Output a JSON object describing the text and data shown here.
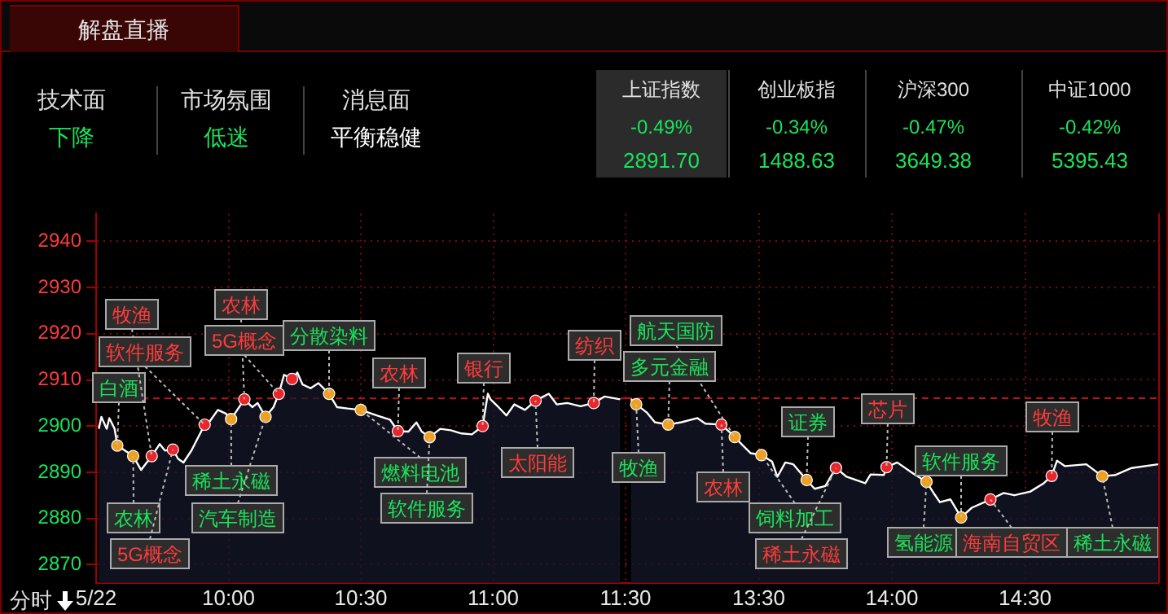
{
  "chart_data": [
    {
      "type": "other",
      "title": "解盘直播",
      "annotations": [
        "技术面",
        "下降",
        "市场氛围",
        "低迷",
        "消息面",
        "平衡稳健",
        "上证指数",
        "-0.49%",
        "2891.70",
        "创业板指",
        "-0.34%",
        "1488.63",
        "沪深300",
        "-0.47%",
        "3649.38",
        "中证1000",
        "-0.42%",
        "5395.43"
      ]
    },
    {
      "type": "area",
      "xlim": [
        9.5,
        11.5
      ],
      "xticks": [
        {
          "value": 9.5,
          "label": "5/22"
        },
        {
          "value": 10,
          "label": "10:00"
        },
        {
          "value": 10.5,
          "label": "10:30"
        },
        {
          "value": 11,
          "label": "11:00"
        },
        {
          "value": 11.5,
          "label": "11:30"
        }
      ],
      "ylim": [
        2866,
        2946
      ],
      "yticks": [
        2870,
        2880,
        2890,
        2900,
        2910,
        2920,
        2930,
        2940
      ],
      "grid": true,
      "ref_lines": [
        {
          "axis": "y",
          "value": 2906.0,
          "color": "#c0141c",
          "line_style": "dashed"
        }
      ],
      "series": [
        {
          "type": "area",
          "color": "#ffffff",
          "x": [
            9.51,
            9.52,
            9.54,
            9.55,
            9.57,
            9.58,
            9.64,
            9.67,
            9.71,
            9.74,
            9.76,
            9.79,
            9.81,
            9.83,
            9.86,
            9.91,
            9.93,
            9.96,
            9.99,
            10.01,
            10.06,
            10.09,
            10.11,
            10.14,
            10.17,
            10.19,
            10.21,
            10.24,
            10.26,
            10.28,
            10.31,
            10.34,
            10.38,
            10.41,
            10.45,
            10.5,
            10.56,
            10.61,
            10.64,
            10.68,
            10.71,
            10.73,
            10.76,
            10.8,
            10.84,
            10.88,
            10.92,
            10.96,
            10.98,
            10.99,
            11.02,
            11.05,
            11.08,
            11.12,
            11.16,
            11.19,
            11.21,
            11.24,
            11.28,
            11.33,
            11.38,
            11.42,
            11.48
          ],
          "values": [
            2899.4,
            2902.0,
            2899.4,
            2901.7,
            2899.4,
            2895.8,
            2893.5,
            2890.5,
            2893.5,
            2896.1,
            2894.7,
            2894.9,
            2892.9,
            2892.1,
            2894.7,
            2900.3,
            2901.1,
            2903.5,
            2902.7,
            2901.5,
            2905.8,
            2904.1,
            2905.0,
            2902.0,
            2904.1,
            2907.0,
            2911.1,
            2910.2,
            2911.6,
            2909.0,
            2908.2,
            2909.3,
            2907.0,
            2904.1,
            2903.8,
            2903.5,
            2902.3,
            2901.4,
            2898.9,
            2898.8,
            2900.8,
            2898.8,
            2897.6,
            2899.4,
            2899.1,
            2898.4,
            2898.2,
            2900.0,
            2907.0,
            2905.8,
            2904.1,
            2902.3,
            2904.7,
            2903.5,
            2905.5,
            2906.4,
            2907.0,
            2904.7,
            2905.0,
            2904.3,
            2905.0,
            2906.4,
            2905.8
          ]
        },
        {
          "type": "scatter",
          "color": "#e8262b",
          "marker": "circle",
          "x": [
            9.71,
            9.79,
            9.91,
            10.06,
            10.19,
            10.24,
            10.64,
            10.96,
            11.16,
            11.38
          ],
          "values": [
            2893.5,
            2894.9,
            2900.3,
            2905.8,
            2907.0,
            2910.2,
            2898.9,
            2900.0,
            2905.5,
            2905.0
          ]
        },
        {
          "type": "scatter",
          "color": "#f0a020",
          "marker": "circle",
          "x": [
            9.58,
            9.64,
            10.01,
            10.14,
            10.38,
            10.5,
            10.76
          ],
          "values": [
            2895.8,
            2893.5,
            2901.5,
            2902.0,
            2907.0,
            2903.5,
            2897.6
          ]
        }
      ],
      "annotations": [
        "分时",
        {
          "text": "白酒",
          "x": 9.58,
          "y": 2895.8
        },
        {
          "text": "农林",
          "x": 9.64,
          "y": 2893.5
        },
        {
          "text": "牧渔",
          "x": 9.71,
          "y": 2893.5
        },
        {
          "text": "软件服务",
          "x": 9.91,
          "y": 2900.3
        },
        {
          "text": "5G概念",
          "x": 9.79,
          "y": 2894.9
        },
        {
          "text": "农林",
          "x": 10.06,
          "y": 2905.8
        },
        {
          "text": "5G概念",
          "x": 10.19,
          "y": 2907.0
        },
        {
          "text": "稀土永磁",
          "x": 10.01,
          "y": 2901.5
        },
        {
          "text": "汽车制造",
          "x": 10.14,
          "y": 2902.0
        },
        {
          "text": "分散染料",
          "x": 10.38,
          "y": 2907.0
        },
        {
          "text": "农林",
          "x": 10.64,
          "y": 2898.9
        },
        {
          "text": "燃料电池",
          "x": 10.5,
          "y": 2903.5
        },
        {
          "text": "软件服务",
          "x": 10.76,
          "y": 2897.6
        },
        {
          "text": "银行",
          "x": 10.96,
          "y": 2900.0
        },
        {
          "text": "太阳能",
          "x": 11.16,
          "y": 2905.5
        },
        {
          "text": "纺织",
          "x": 11.38,
          "y": 2905.0
        }
      ]
    },
    {
      "type": "area",
      "xlim": [
        13,
        15
      ],
      "xticks": [
        {
          "value": 13.5,
          "label": "13:30"
        },
        {
          "value": 14,
          "label": "14:00"
        },
        {
          "value": 14.5,
          "label": "14:30"
        }
      ],
      "ylim": [
        2866,
        2946
      ],
      "yticks": [
        2870,
        2880,
        2890,
        2900,
        2910,
        2920,
        2930,
        2940
      ],
      "grid": true,
      "tick_labels": "x",
      "ref_lines": [
        {
          "axis": "y",
          "value": 2906.0,
          "color": "#c0141c",
          "line_style": "dashed"
        }
      ],
      "series": [
        {
          "type": "area",
          "color": "#ffffff",
          "x": [
            13.02,
            13.04,
            13.08,
            13.11,
            13.16,
            13.21,
            13.27,
            13.3,
            13.36,
            13.41,
            13.44,
            13.47,
            13.51,
            13.55,
            13.57,
            13.6,
            13.63,
            13.68,
            13.71,
            13.75,
            13.79,
            13.83,
            13.9,
            13.92,
            13.97,
            13.98,
            14.02,
            14.08,
            14.13,
            14.16,
            14.18,
            14.22,
            14.26,
            14.3,
            14.37,
            14.42,
            14.46,
            14.52,
            14.57,
            14.6,
            14.62,
            14.65,
            14.73,
            14.79,
            14.84,
            14.9,
            15.0
          ],
          "values": [
            2905.8,
            2904.7,
            2902.9,
            2900.8,
            2900.3,
            2900.8,
            2901.7,
            2900.5,
            2900.3,
            2897.6,
            2895.8,
            2894.1,
            2893.7,
            2892.3,
            2889.0,
            2892.1,
            2891.7,
            2888.3,
            2886.4,
            2887.0,
            2890.9,
            2889.0,
            2887.6,
            2889.5,
            2889.4,
            2891.1,
            2892.1,
            2889.7,
            2887.9,
            2885.2,
            2883.5,
            2884.1,
            2880.2,
            2882.3,
            2884.1,
            2885.5,
            2885.0,
            2885.8,
            2887.6,
            2889.2,
            2892.5,
            2891.3,
            2891.7,
            2889.1,
            2889.4,
            2890.9,
            2891.7
          ]
        },
        {
          "type": "scatter",
          "color": "#e8262b",
          "marker": "circle",
          "x": [
            13.36,
            13.79,
            13.98,
            14.37,
            14.6
          ],
          "values": [
            2900.3,
            2890.9,
            2891.1,
            2884.1,
            2889.2
          ]
        },
        {
          "type": "scatter",
          "color": "#f0a020",
          "marker": "circle",
          "x": [
            13.04,
            13.16,
            13.41,
            13.51,
            13.68,
            14.13,
            14.26,
            14.79
          ],
          "values": [
            2904.7,
            2900.3,
            2897.6,
            2893.7,
            2888.3,
            2887.9,
            2880.2,
            2889.1
          ]
        }
      ],
      "annotations": [
        {
          "text": "航天国防",
          "x": 13.41,
          "y": 2897.6
        },
        {
          "text": "多元金融",
          "x": 13.16,
          "y": 2900.3
        },
        {
          "text": "牧渔",
          "x": 13.04,
          "y": 2904.7
        },
        {
          "text": "农林",
          "x": 13.36,
          "y": 2900.3
        },
        {
          "text": "饲料加工",
          "x": 13.51,
          "y": 2893.7
        },
        {
          "text": "稀土永磁",
          "x": 13.79,
          "y": 2890.9
        },
        {
          "text": "证券",
          "x": 13.68,
          "y": 2888.3
        },
        {
          "text": "芯片",
          "x": 13.98,
          "y": 2891.1
        },
        {
          "text": "氢能源",
          "x": 14.13,
          "y": 2887.9
        },
        {
          "text": "软件服务",
          "x": 14.26,
          "y": 2880.2
        },
        {
          "text": "海南自贸区",
          "x": 14.37,
          "y": 2884.1
        },
        {
          "text": "牧渔",
          "x": 14.6,
          "y": 2889.2
        },
        {
          "text": "稀土永磁",
          "x": 14.79,
          "y": 2889.1
        }
      ]
    }
  ]
}
